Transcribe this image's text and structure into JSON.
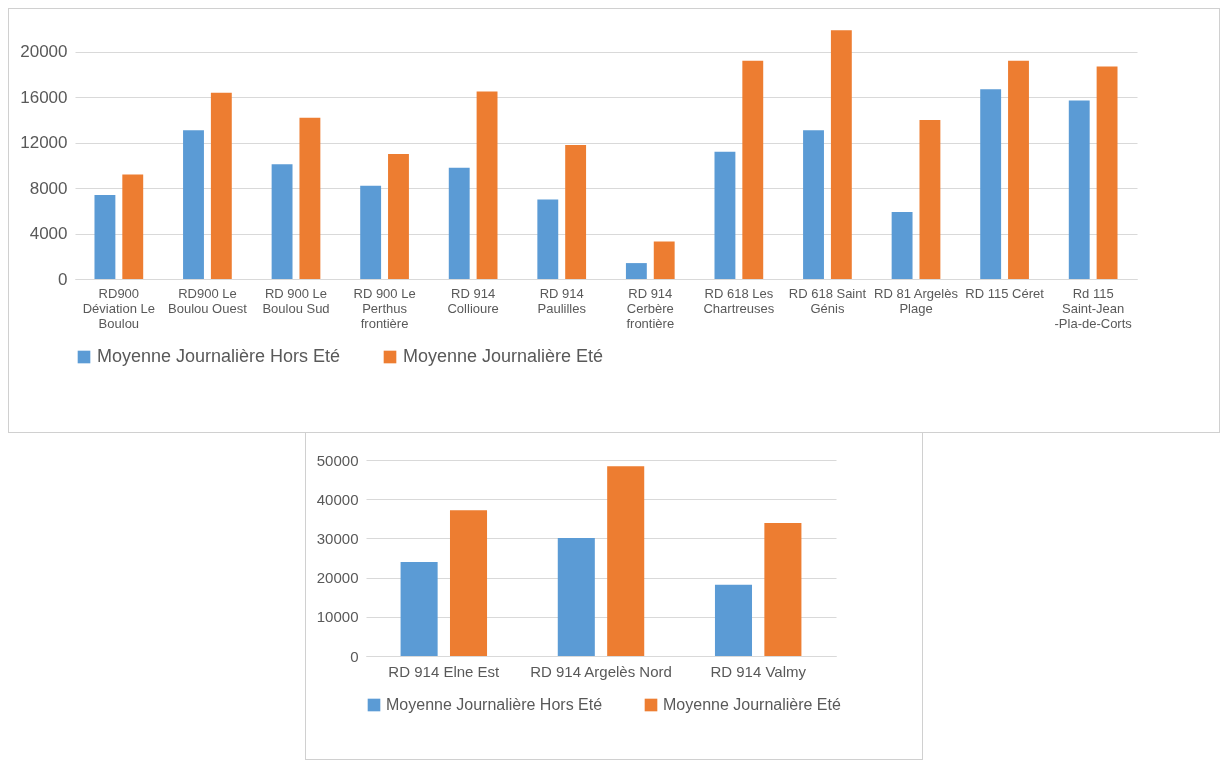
{
  "chart_data": [
    {
      "type": "bar",
      "categories": [
        "RD900 Déviation Le Boulou",
        "RD900 Le Boulou Ouest",
        "RD 900 Le Boulou Sud",
        "RD 900 Le Perthus frontière",
        "RD 914 Collioure",
        "RD 914 Paulilles",
        "RD 914 Cerbère frontière",
        "RD 618 Les Chartreuses",
        "RD 618 Saint Génis",
        "RD 81 Argelès Plage",
        "RD 115 Céret",
        "Rd 115 Saint-Jean -Pla-de-Corts"
      ],
      "series": [
        {
          "name": "Moyenne Journalière Hors Eté",
          "color": "#5b9bd5",
          "values": [
            7400,
            13100,
            10100,
            8200,
            9800,
            7000,
            1400,
            11200,
            13100,
            5900,
            16700,
            15700
          ]
        },
        {
          "name": "Moyenne Journalière Eté",
          "color": "#ed7d31",
          "values": [
            9200,
            16400,
            14200,
            11000,
            16500,
            11800,
            3300,
            19200,
            21900,
            14000,
            19200,
            18700
          ]
        }
      ],
      "ylim": [
        0,
        22000
      ],
      "yticks": [
        0,
        4000,
        8000,
        12000,
        16000,
        20000
      ],
      "grid": "y",
      "legend": "bottom"
    },
    {
      "type": "bar",
      "categories": [
        "RD 914 Elne Est",
        "RD 914 Argelès Nord",
        "RD 914 Valmy"
      ],
      "series": [
        {
          "name": "Moyenne Journalière Hors Eté",
          "color": "#5b9bd5",
          "values": [
            24000,
            30100,
            18200
          ]
        },
        {
          "name": "Moyenne Journalière Eté",
          "color": "#ed7d31",
          "values": [
            37200,
            48400,
            33900
          ]
        }
      ],
      "ylim": [
        0,
        50000
      ],
      "yticks": [
        0,
        10000,
        20000,
        30000,
        40000,
        50000
      ],
      "grid": "y",
      "legend": "bottom"
    }
  ]
}
